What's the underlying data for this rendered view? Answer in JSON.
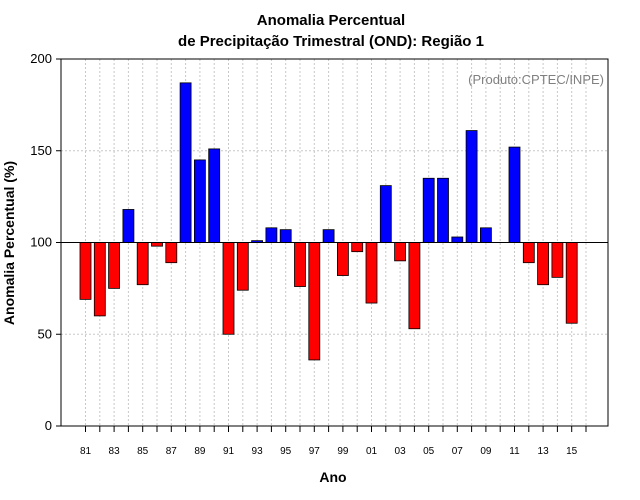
{
  "chart_data": {
    "type": "bar",
    "title_line1": "Anomalia Percentual",
    "title_line2": "de Precipitação Trimestral (OND): Região 1",
    "xlabel": "Ano",
    "ylabel": "Anomalia Percentual (%)",
    "annotation": "(Produto:CPTEC/INPE)",
    "baseline": 100,
    "ylim": [
      0,
      200
    ],
    "yticks": [
      0,
      50,
      100,
      150,
      200
    ],
    "ytick_labels": [
      "0",
      "50",
      "100",
      "150",
      "200"
    ],
    "x": [
      81,
      82,
      83,
      84,
      85,
      86,
      87,
      88,
      89,
      90,
      91,
      92,
      93,
      94,
      95,
      96,
      97,
      98,
      99,
      100,
      101,
      102,
      103,
      104,
      105,
      106,
      107,
      108,
      109,
      110,
      111,
      112,
      113,
      114,
      115,
      116
    ],
    "values": [
      69,
      60,
      75,
      118,
      77,
      98,
      89,
      187,
      145,
      151,
      50,
      74,
      101,
      108,
      107,
      76,
      36,
      107,
      82,
      95,
      67,
      131,
      90,
      53,
      135,
      135,
      103,
      161,
      108,
      null,
      152,
      89,
      77,
      81,
      56,
      null
    ],
    "xtick_labels": [
      "81",
      "83",
      "85",
      "87",
      "89",
      "91",
      "93",
      "95",
      "97",
      "99",
      "01",
      "03",
      "05",
      "07",
      "09",
      "11",
      "13",
      "15"
    ],
    "colors": {
      "above": "#0000ff",
      "below": "#ff0000",
      "outline": "#000000",
      "grid": "#c8c8c8"
    }
  }
}
